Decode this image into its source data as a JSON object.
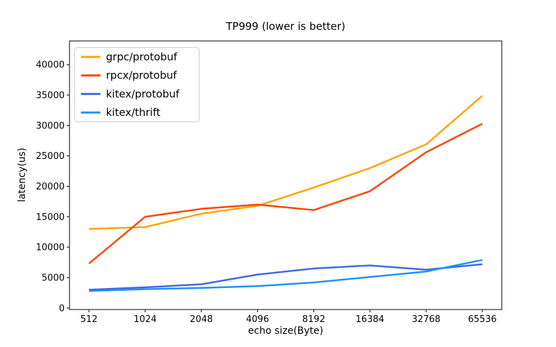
{
  "chart_data": {
    "type": "line",
    "title": "TP999 (lower is better)",
    "xlabel": "echo size(Byte)",
    "ylabel": "latency(us)",
    "categories": [
      "512",
      "1024",
      "2048",
      "4096",
      "8192",
      "16384",
      "32768",
      "65536"
    ],
    "series": [
      {
        "name": "grpc/protobuf",
        "color": "#FFA500",
        "values": [
          13000,
          13300,
          15500,
          16800,
          19800,
          23000,
          26900,
          34900
        ]
      },
      {
        "name": "rpcx/protobuf",
        "color": "#FF4500",
        "values": [
          7300,
          15000,
          16300,
          17000,
          16100,
          19200,
          25600,
          30300
        ]
      },
      {
        "name": "kitex/protobuf",
        "color": "#4169E1",
        "values": [
          3000,
          3400,
          3900,
          5500,
          6500,
          7000,
          6300,
          7200
        ]
      },
      {
        "name": "kitex/thrift",
        "color": "#1E90FF",
        "values": [
          2800,
          3100,
          3300,
          3600,
          4200,
          5100,
          6000,
          7900
        ]
      }
    ],
    "yticks": [
      0,
      5000,
      10000,
      15000,
      20000,
      25000,
      30000,
      35000,
      40000
    ],
    "ylim": [
      -250,
      43900
    ],
    "legend_position": "upper left",
    "grid": false,
    "colors": {
      "axis": "#000000",
      "text": "#000000",
      "legend_border": "#cccccc",
      "background": "#ffffff"
    }
  }
}
